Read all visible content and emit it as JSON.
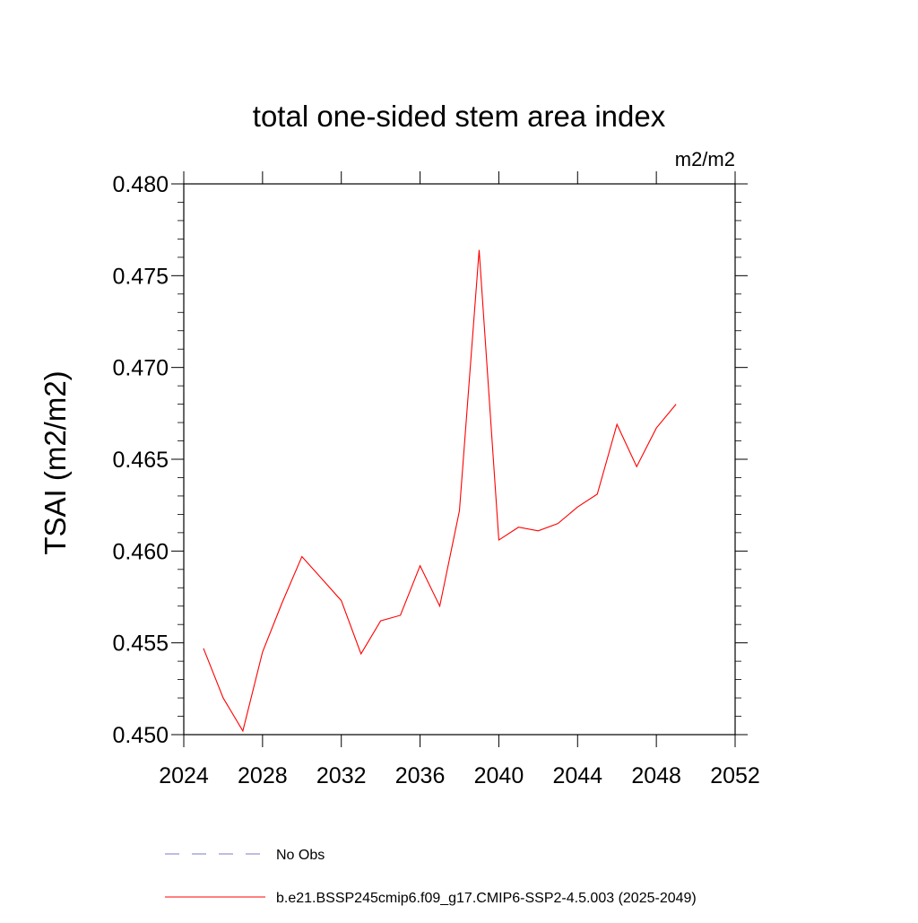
{
  "chart_data": {
    "type": "line",
    "title": "total one-sided stem area index",
    "units": "m2/m2",
    "xlabel": "",
    "ylabel": "TSAI  (m2/m2)",
    "xlim": [
      2024,
      2052
    ],
    "ylim": [
      0.45,
      0.48
    ],
    "xticks": [
      2024,
      2028,
      2032,
      2036,
      2040,
      2044,
      2048,
      2052
    ],
    "xtick_labels": [
      "2024",
      "2028",
      "2032",
      "2036",
      "2040",
      "2044",
      "2048",
      "2052"
    ],
    "yticks": [
      0.45,
      0.455,
      0.46,
      0.465,
      0.47,
      0.475,
      0.48
    ],
    "ytick_labels": [
      "0.450",
      "0.455",
      "0.460",
      "0.465",
      "0.470",
      "0.475",
      "0.480"
    ],
    "series": [
      {
        "name": "b.e21.BSSP245cmip6.f09_g17.CMIP6-SSP2-4.5.003 (2025-2049)",
        "color": "#ff0000",
        "x": [
          2025,
          2026,
          2027,
          2028,
          2029,
          2030,
          2031,
          2032,
          2033,
          2034,
          2035,
          2036,
          2037,
          2038,
          2039,
          2040,
          2041,
          2042,
          2043,
          2044,
          2045,
          2046,
          2047,
          2048,
          2049
        ],
        "y": [
          0.4547,
          0.452,
          0.4502,
          0.4545,
          0.4572,
          0.4597,
          0.4585,
          0.4573,
          0.4544,
          0.4562,
          0.4565,
          0.4592,
          0.457,
          0.4622,
          0.4764,
          0.4606,
          0.4613,
          0.4611,
          0.4615,
          0.4624,
          0.4631,
          0.4669,
          0.4646,
          0.4667,
          0.468
        ]
      }
    ],
    "legend": [
      {
        "label": "No Obs",
        "style": "dashed",
        "color": "#7b7bc6"
      },
      {
        "label": "b.e21.BSSP245cmip6.f09_g17.CMIP6-SSP2-4.5.003 (2025-2049)",
        "style": "solid",
        "color": "#ff0000"
      }
    ],
    "legend_position": "bottom",
    "grid": false
  }
}
